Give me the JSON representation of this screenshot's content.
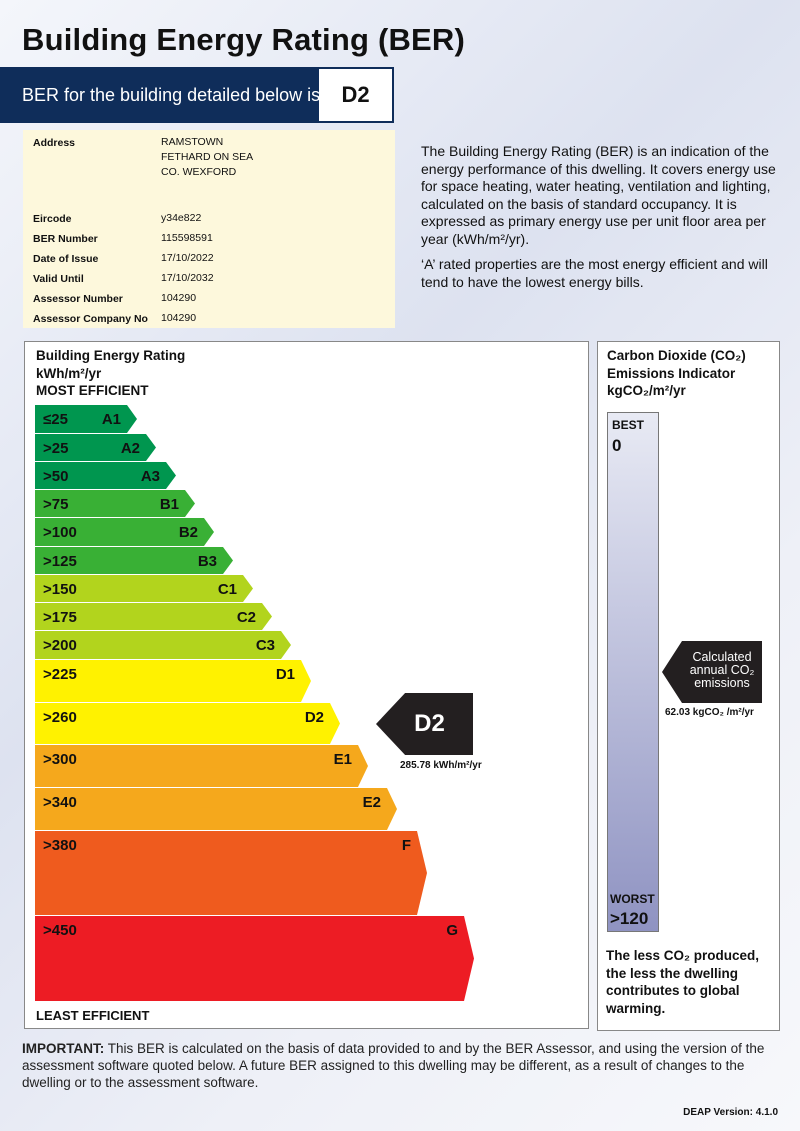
{
  "title": "Building Energy Rating (BER)",
  "banner": {
    "label": "BER for the building detailed below is:",
    "rating": "D2"
  },
  "info": {
    "address_label": "Address",
    "address": [
      "RAMSTOWN",
      "FETHARD ON SEA",
      "CO. WEXFORD"
    ],
    "rows": [
      {
        "label": "Eircode",
        "value": "y34e822"
      },
      {
        "label": "BER Number",
        "value": "115598591"
      },
      {
        "label": "Date of Issue",
        "value": "17/10/2022"
      },
      {
        "label": "Valid Until",
        "value": "17/10/2032"
      },
      {
        "label": "Assessor Number",
        "value": "104290"
      },
      {
        "label": "Assessor Company No",
        "value": "104290"
      }
    ]
  },
  "description": [
    "The Building Energy Rating (BER) is an indication of the energy performance of this dwelling.  It covers energy use for space heating, water heating, ventilation and lighting, calculated on the basis of standard occupancy. It is expressed as primary energy use per unit floor area per year (kWh/m²/yr).",
    "‘A’ rated properties are the most energy efficient and will tend to have the lowest energy bills."
  ],
  "scale": {
    "heading": [
      "Building Energy Rating",
      "kWh/m²/yr",
      "MOST EFFICIENT"
    ],
    "least": "LEAST EFFICIENT",
    "bands": [
      {
        "range": "≤25",
        "class": "A1",
        "color": "#00964f"
      },
      {
        "range": ">25",
        "class": "A2",
        "color": "#00964f"
      },
      {
        "range": ">50",
        "class": "A3",
        "color": "#00964f"
      },
      {
        "range": ">75",
        "class": "B1",
        "color": "#39b035"
      },
      {
        "range": ">100",
        "class": "B2",
        "color": "#39b035"
      },
      {
        "range": ">125",
        "class": "B3",
        "color": "#39b035"
      },
      {
        "range": ">150",
        "class": "C1",
        "color": "#b2d41d"
      },
      {
        "range": ">175",
        "class": "C2",
        "color": "#b2d41d"
      },
      {
        "range": ">200",
        "class": "C3",
        "color": "#b2d41d"
      },
      {
        "range": ">225",
        "class": "D1",
        "color": "#fff200"
      },
      {
        "range": ">260",
        "class": "D2",
        "color": "#fff200"
      },
      {
        "range": ">300",
        "class": "E1",
        "color": "#f5a81c"
      },
      {
        "range": ">340",
        "class": "E2",
        "color": "#f5a81c"
      },
      {
        "range": ">380",
        "class": "F",
        "color": "#ef5b1e"
      },
      {
        "range": ">450",
        "class": "G",
        "color": "#ed1c24"
      }
    ],
    "rating": "D2",
    "rating_value": "285.78 kWh/m²/yr"
  },
  "co2": {
    "heading": [
      "Carbon Dioxide (CO₂)",
      "Emissions Indicator",
      "kgCO₂/m²/yr"
    ],
    "best_label": "BEST",
    "best_value": "0",
    "worst_label": "WORST",
    "worst_value": ">120",
    "arrow_text": [
      "Calculated",
      "annual CO₂",
      "emissions"
    ],
    "value": "62.03 kgCO₂ /m²/yr",
    "note": "The less CO₂ produced, the less the dwelling contributes to global warming."
  },
  "important": {
    "label": "IMPORTANT:",
    "text": " This BER is calculated on the basis of data provided to and by the BER Assessor, and using the version of the assessment software quoted below.  A future BER assigned to this dwelling may be different, as a result of changes to the dwelling or to the assessment software."
  },
  "deap_version": "DEAP Version: 4.1.0"
}
